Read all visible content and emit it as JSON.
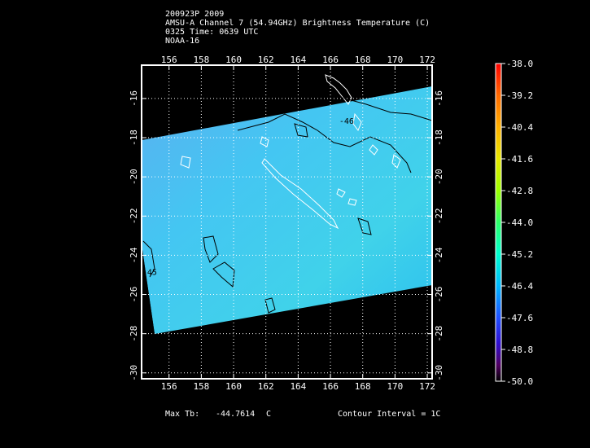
{
  "header": {
    "line1": "200923P 2009",
    "line2": "AMSU-A Channel 7 (54.94GHz) Brightness Temperature (C)",
    "line3": "0325 Time: 0639 UTC",
    "line4": "NOAA-16"
  },
  "footer": {
    "max_label": "Max Tb:",
    "max_value": "-44.7614",
    "max_unit": "C",
    "contour": "Contour Interval = 1C"
  },
  "chart_data": {
    "type": "heatmap",
    "x_ticks": [
      "156",
      "158",
      "160",
      "162",
      "164",
      "166",
      "168",
      "170",
      "172"
    ],
    "x_tick_values": [
      156,
      158,
      160,
      162,
      164,
      166,
      168,
      170,
      172
    ],
    "y_ticks": [
      "-16",
      "-18",
      "-20",
      "-22",
      "-24",
      "-26",
      "-28",
      "-30"
    ],
    "y_tick_values": [
      -16,
      -18,
      -20,
      -22,
      -24,
      -26,
      -28,
      -30
    ],
    "xlim": [
      154.3,
      172.3
    ],
    "ylim": [
      -30.3,
      -14.3
    ],
    "grid": true,
    "contour_labels": [
      {
        "text": "-46",
        "lon": 167.0,
        "lat": -17.3
      },
      {
        "text": "-45",
        "lon": 154.8,
        "lat": -25.0
      }
    ],
    "colorbar": {
      "labels": [
        "-38.0",
        "-39.2",
        "-40.4",
        "-41.6",
        "-42.8",
        "-44.0",
        "-45.2",
        "-46.4",
        "-47.6",
        "-48.8",
        "-50.0"
      ],
      "values": [
        -38.0,
        -39.2,
        -40.4,
        -41.6,
        -42.8,
        -44.0,
        -45.2,
        -46.4,
        -47.6,
        -48.8,
        -50.0
      ],
      "colors": [
        "#ff0000",
        "#ff6a00",
        "#ffb000",
        "#e8e800",
        "#9cff00",
        "#2cff6a",
        "#00ffd0",
        "#00b8ff",
        "#2050ff",
        "#3010d0",
        "#500060",
        "#000000"
      ]
    },
    "swath_color": "#35c8f0"
  }
}
